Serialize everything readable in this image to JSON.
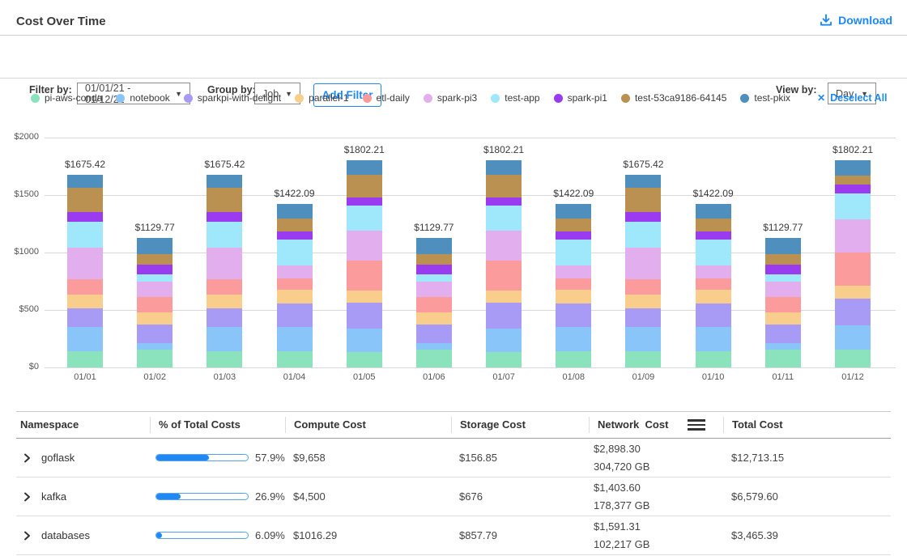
{
  "header": {
    "title": "Cost Over Time",
    "download_label": "Download"
  },
  "filter_bar": {
    "filter_by_label": "Filter by:",
    "date_range_value": "01/01/21 - 01/12/21",
    "group_by_label": "Group by:",
    "group_by_value": "Job",
    "add_filter_label": "Add Filter",
    "view_by_label": "View by:",
    "view_by_value": "Day"
  },
  "legend": {
    "items": [
      {
        "label": "pi-aws-conda",
        "color": "#8BE3BE"
      },
      {
        "label": "notebook",
        "color": "#8AC5FA"
      },
      {
        "label": "sparkpi-with-delight",
        "color": "#A89BF5"
      },
      {
        "label": "parallel-1",
        "color": "#F9CE8C"
      },
      {
        "label": "etl-daily",
        "color": "#FC9B9B"
      },
      {
        "label": "spark-pi3",
        "color": "#E2AEED"
      },
      {
        "label": "test-app",
        "color": "#9FE8FC"
      },
      {
        "label": "spark-pi1",
        "color": "#9B3BF0"
      },
      {
        "label": "test-53ca9186-64145",
        "color": "#BA9150"
      },
      {
        "label": "test-pkix",
        "color": "#4E8FBE"
      }
    ],
    "deselect_all_label": "Deselect All",
    "deselect_icon": "✕"
  },
  "chart_data": {
    "type": "bar",
    "stacked": true,
    "title": "Cost Over Time",
    "xlabel": "",
    "ylabel": "",
    "ylim": [
      0,
      2000
    ],
    "grid": true,
    "legend_position": "top",
    "y_ticks": [
      {
        "label": "$0",
        "value": 0
      },
      {
        "label": "$500",
        "value": 500
      },
      {
        "label": "$1000",
        "value": 1000
      },
      {
        "label": "$1500",
        "value": 1500
      },
      {
        "label": "$2000",
        "value": 2000
      }
    ],
    "categories": [
      "01/01",
      "01/02",
      "01/03",
      "01/04",
      "01/05",
      "01/06",
      "01/07",
      "01/08",
      "01/09",
      "01/10",
      "01/11",
      "01/12"
    ],
    "totals": [
      "$1675.42",
      "$1129.77",
      "$1675.42",
      "$1422.09",
      "$1802.21",
      "$1129.77",
      "$1802.21",
      "$1422.09",
      "$1675.42",
      "$1422.09",
      "$1129.77",
      "$1802.21"
    ],
    "series": [
      {
        "name": "pi-aws-conda",
        "color": "#8BE3BE",
        "values": [
          139,
          155,
          139,
          138,
          134,
          155,
          134,
          138,
          139,
          138,
          155,
          153
        ]
      },
      {
        "name": "notebook",
        "color": "#8AC5FA",
        "values": [
          214,
          58,
          214,
          213,
          202,
          58,
          202,
          213,
          214,
          213,
          58,
          214
        ]
      },
      {
        "name": "sparkpi-with-delight",
        "color": "#A89BF5",
        "values": [
          163,
          157,
          163,
          205,
          227,
          157,
          227,
          205,
          163,
          205,
          157,
          232
        ]
      },
      {
        "name": "parallel-1",
        "color": "#F9CE8C",
        "values": [
          117,
          112,
          117,
          121,
          106,
          112,
          106,
          121,
          117,
          121,
          112,
          113
        ]
      },
      {
        "name": "etl-daily",
        "color": "#FC9B9B",
        "values": [
          133,
          130,
          133,
          97,
          258,
          130,
          258,
          97,
          133,
          97,
          130,
          289
        ]
      },
      {
        "name": "spark-pi3",
        "color": "#E2AEED",
        "values": [
          279,
          137,
          279,
          116,
          265,
          137,
          265,
          116,
          279,
          116,
          137,
          285
        ]
      },
      {
        "name": "test-app",
        "color": "#9FE8FC",
        "values": [
          224,
          62,
          224,
          225,
          216,
          62,
          216,
          225,
          224,
          225,
          62,
          227
        ]
      },
      {
        "name": "spark-pi1",
        "color": "#9B3BF0",
        "values": [
          80,
          80,
          80,
          70,
          70,
          80,
          70,
          70,
          80,
          70,
          80,
          81
        ]
      },
      {
        "name": "test-53ca9186-64145",
        "color": "#BA9150",
        "values": [
          212,
          95,
          212,
          109,
          195,
          95,
          195,
          109,
          212,
          109,
          95,
          76
        ]
      },
      {
        "name": "test-pkix",
        "color": "#4E8FBE",
        "values": [
          114.42,
          143.77,
          114.42,
          128.09,
          129.21,
          143.77,
          129.21,
          128.09,
          114.42,
          128.09,
          143.77,
          132.21
        ]
      }
    ]
  },
  "table": {
    "columns": [
      "Namespace",
      "% of Total Costs",
      "Compute Cost",
      "Storage Cost",
      "Network  Cost",
      "Total Cost"
    ],
    "rows": [
      {
        "namespace": "goflask",
        "percent_label": "57.9%",
        "percent_value": 57.9,
        "compute": "$9,658",
        "storage": "$156.85",
        "network_cost": "$2,898.30",
        "network_gb": "304,720 GB",
        "total": "$12,713.15"
      },
      {
        "namespace": "kafka",
        "percent_label": "26.9%",
        "percent_value": 26.9,
        "compute": "$4,500",
        "storage": "$676",
        "network_cost": "$1,403.60",
        "network_gb": "178,377 GB",
        "total": "$6,579.60"
      },
      {
        "namespace": "databases",
        "percent_label": "6.09%",
        "percent_value": 6.09,
        "compute": "$1016.29",
        "storage": "$857.79",
        "network_cost": "$1,591.31",
        "network_gb": "102,217 GB",
        "total": "$3,465.39"
      }
    ]
  },
  "colors": {
    "accent_blue": "#1E88F5",
    "progress_track_border": "#56A5EC",
    "gridline": "#D9D9D9"
  }
}
